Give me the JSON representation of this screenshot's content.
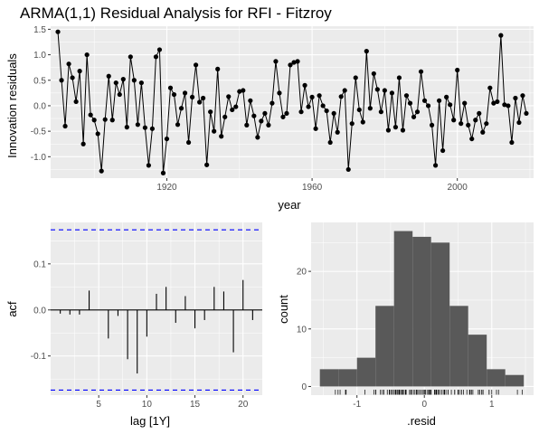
{
  "title": "ARMA(1,1) Residual Analysis for RFI - Fitzroy",
  "chart_data": [
    {
      "type": "line",
      "xlabel": "year",
      "ylabel": "Innovation residuals",
      "xlim": [
        1888,
        2021
      ],
      "ylim": [
        -1.42,
        1.56
      ],
      "xticks": [
        1920,
        1960,
        2000
      ],
      "xtick_labels": [
        "1920",
        "1960",
        "2000"
      ],
      "yticks": [
        -1.0,
        -0.5,
        0.0,
        0.5,
        1.0,
        1.5
      ],
      "ytick_labels": [
        "-1.0",
        "-0.5",
        "0.0",
        "0.5",
        "1.0",
        "1.5"
      ],
      "x_start": 1890,
      "values": [
        1.45,
        0.5,
        -0.4,
        0.82,
        0.55,
        0.08,
        0.68,
        -0.75,
        1.0,
        -0.18,
        -0.28,
        -0.55,
        -1.28,
        -0.27,
        0.58,
        -0.28,
        0.45,
        0.22,
        0.52,
        -0.42,
        0.96,
        0.5,
        -0.37,
        0.45,
        -0.43,
        -1.17,
        -0.45,
        0.96,
        1.1,
        -1.32,
        -0.65,
        0.35,
        0.22,
        -0.37,
        -0.05,
        0.25,
        -0.72,
        0.17,
        0.8,
        0.07,
        0.15,
        -1.16,
        -0.12,
        -0.5,
        0.72,
        -0.6,
        -0.22,
        0.18,
        -0.08,
        -0.02,
        0.28,
        0.3,
        -0.38,
        0.1,
        -0.2,
        -0.62,
        -0.3,
        -0.15,
        -0.38,
        0.05,
        0.87,
        0.25,
        -0.22,
        -0.15,
        0.8,
        0.85,
        0.87,
        -0.12,
        0.4,
        -0.02,
        0.17,
        -0.45,
        0.2,
        0.0,
        -0.1,
        -0.72,
        -0.15,
        -0.52,
        0.18,
        0.3,
        -1.25,
        -0.35,
        0.55,
        -0.08,
        -0.32,
        1.07,
        -0.05,
        0.63,
        0.32,
        -0.12,
        0.3,
        -0.48,
        0.25,
        -0.42,
        0.55,
        -0.48,
        0.2,
        0.05,
        -0.22,
        -0.12,
        0.67,
        0.1,
        0.0,
        -0.38,
        -1.17,
        0.1,
        -0.88,
        0.17,
        0.02,
        -0.28,
        0.7,
        -0.35,
        0.05,
        -0.38,
        -0.65,
        -0.28,
        -0.15,
        -0.52,
        -0.35,
        0.35,
        0.05,
        0.08,
        1.38,
        0.02,
        0.0,
        -0.72,
        0.15,
        -0.33,
        0.2,
        -0.15
      ]
    },
    {
      "type": "bar",
      "xlabel": "lag [1Y]",
      "ylabel": "acf",
      "xlim": [
        0,
        22
      ],
      "ylim": [
        -0.185,
        0.19
      ],
      "xticks": [
        5,
        10,
        15,
        20
      ],
      "xtick_labels": [
        "5",
        "10",
        "15",
        "20"
      ],
      "yticks": [
        -0.1,
        0.0,
        0.1
      ],
      "ytick_labels": [
        "-0.1",
        "0.0",
        "0.1"
      ],
      "categories": [
        1,
        2,
        3,
        4,
        5,
        6,
        7,
        8,
        9,
        10,
        11,
        12,
        13,
        14,
        15,
        16,
        17,
        18,
        19,
        20,
        21
      ],
      "values": [
        -0.008,
        -0.01,
        -0.01,
        0.042,
        0.0,
        -0.062,
        -0.013,
        -0.107,
        -0.138,
        -0.058,
        0.035,
        0.05,
        -0.028,
        0.03,
        -0.04,
        -0.022,
        0.05,
        0.04,
        -0.092,
        0.065,
        -0.022
      ],
      "confidence_bound": 0.174
    },
    {
      "type": "bar",
      "xlabel": ".resid",
      "ylabel": "count",
      "xlim": [
        -1.68,
        1.62
      ],
      "ylim": [
        -1.5,
        28.5
      ],
      "xticks": [
        -1,
        0,
        1
      ],
      "xtick_labels": [
        "-1",
        "0",
        "1"
      ],
      "yticks": [
        0,
        10,
        20
      ],
      "ytick_labels": [
        "0",
        "10",
        "20"
      ],
      "bin_edges": [
        -1.55,
        -1.275,
        -1.0,
        -0.725,
        -0.45,
        -0.175,
        0.1,
        0.375,
        0.65,
        0.925,
        1.2,
        1.475
      ],
      "values": [
        3,
        3,
        5,
        14,
        27,
        26,
        25,
        14,
        9,
        3,
        2
      ],
      "rug": [
        -1.32,
        -1.28,
        -1.25,
        -1.17,
        -1.16,
        -0.88,
        -0.75,
        -0.72,
        -0.72,
        -0.65,
        -0.65,
        -0.62,
        -0.6,
        -0.55,
        -0.52,
        -0.52,
        -0.5,
        -0.48,
        -0.48,
        -0.45,
        -0.45,
        -0.43,
        -0.42,
        -0.42,
        -0.4,
        -0.38,
        -0.38,
        -0.38,
        -0.38,
        -0.37,
        -0.37,
        -0.35,
        -0.35,
        -0.35,
        -0.33,
        -0.32,
        -0.3,
        -0.28,
        -0.28,
        -0.28,
        -0.28,
        -0.27,
        -0.22,
        -0.22,
        -0.22,
        -0.2,
        -0.18,
        -0.15,
        -0.15,
        -0.15,
        -0.15,
        -0.15,
        -0.12,
        -0.12,
        -0.12,
        -0.12,
        -0.1,
        -0.08,
        -0.08,
        -0.05,
        -0.05,
        -0.02,
        -0.02,
        0.0,
        0.0,
        0.0,
        0.02,
        0.02,
        0.05,
        0.05,
        0.05,
        0.05,
        0.07,
        0.08,
        0.08,
        0.1,
        0.1,
        0.1,
        0.15,
        0.15,
        0.17,
        0.17,
        0.17,
        0.18,
        0.18,
        0.2,
        0.2,
        0.22,
        0.22,
        0.25,
        0.25,
        0.25,
        0.28,
        0.3,
        0.3,
        0.3,
        0.32,
        0.35,
        0.35,
        0.4,
        0.45,
        0.45,
        0.5,
        0.5,
        0.52,
        0.55,
        0.55,
        0.58,
        0.63,
        0.67,
        0.68,
        0.7,
        0.72,
        0.8,
        0.8,
        0.82,
        0.85,
        0.87,
        0.87,
        0.96,
        0.96,
        1.0,
        1.07,
        1.1,
        1.38,
        1.45
      ]
    }
  ]
}
